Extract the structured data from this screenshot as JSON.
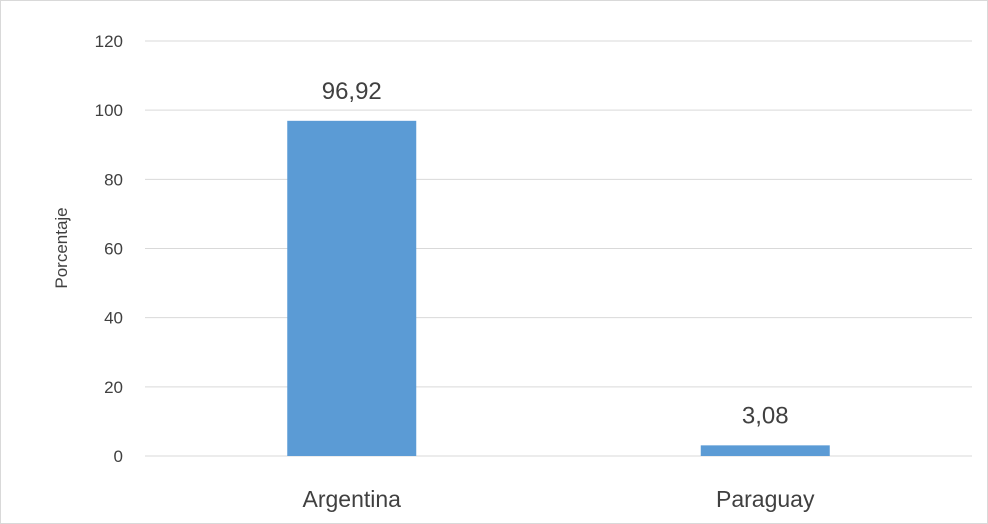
{
  "chart_data": {
    "type": "bar",
    "title": "",
    "xlabel": "",
    "ylabel": "Porcentaje",
    "categories": [
      "Argentina",
      "Paraguay"
    ],
    "values": [
      96.92,
      3.08
    ],
    "data_labels": [
      "96,92",
      "3,08"
    ],
    "ylim": [
      0,
      120
    ],
    "yticks": [
      0,
      20,
      40,
      60,
      80,
      100,
      120
    ],
    "ytick_labels": [
      "0",
      "20",
      "40",
      "60",
      "80",
      "100",
      "120"
    ],
    "grid": true,
    "legend": "none",
    "bar_color": "#5b9bd5",
    "grid_color": "#d9d9d9",
    "text_color": "#404040"
  }
}
